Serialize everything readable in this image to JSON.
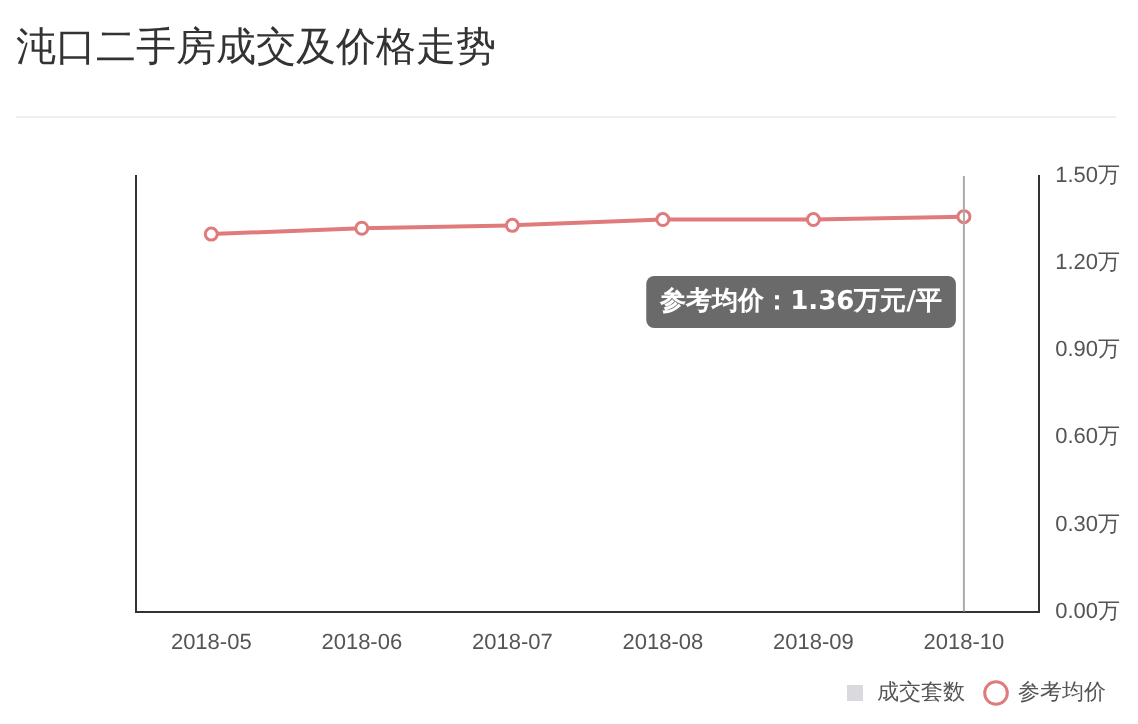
{
  "chart_data": {
    "type": "line",
    "title": "沌口二手房成交及价格走势",
    "categories": [
      "2018-05",
      "2018-06",
      "2018-07",
      "2018-08",
      "2018-09",
      "2018-10"
    ],
    "series": [
      {
        "name": "成交套数",
        "type": "bar",
        "color": "#d9d9de",
        "values": [
          null,
          null,
          null,
          null,
          null,
          null
        ]
      },
      {
        "name": "参考均价",
        "axis": "y2",
        "color": "#e07b7b",
        "values": [
          1.3,
          1.32,
          1.33,
          1.35,
          1.35,
          1.36
        ]
      }
    ],
    "y2lim": [
      0,
      1.5
    ],
    "y2ticks": [
      {
        "value": 0,
        "label": "0.00万"
      },
      {
        "value": 0.3,
        "label": "0.30万"
      },
      {
        "value": 0.6,
        "label": "0.60万"
      },
      {
        "value": 0.9,
        "label": "0.90万"
      },
      {
        "value": 1.2,
        "label": "1.20万"
      },
      {
        "value": 1.5,
        "label": "1.50万"
      }
    ],
    "ref_lines": [
      {
        "axis": "x",
        "value": "2018-10",
        "color": "#aaaaaa"
      }
    ],
    "annotations": [
      "参考均价：1.36万元/平"
    ],
    "marker": "circle",
    "legend": "bottom right",
    "grid": false
  }
}
